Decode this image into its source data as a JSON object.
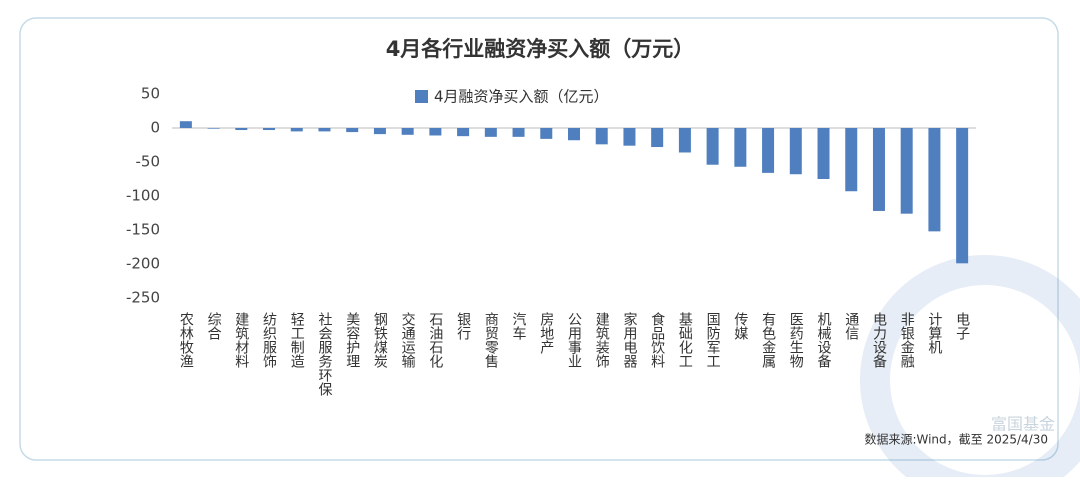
{
  "chart_data": {
    "type": "bar",
    "title": "4月各行业融资净买入额（万元）",
    "legend_label": "4月融资净买入额（亿元）",
    "source": "数据来源:Wind，截至 2025/4/30",
    "watermark": "富国基金",
    "categories": [
      "农林牧渔",
      "综合",
      "建筑材料",
      "纺织服饰",
      "轻工制造",
      "社会服务环保",
      "美容护理",
      "钢铁煤炭",
      "交通运输",
      "石油石化",
      "银行",
      "商贸零售",
      "汽车",
      "房地产",
      "公用事业",
      "建筑装饰",
      "家用电器",
      "食品饮料",
      "基础化工",
      "国防军工",
      "传媒",
      "有色金属",
      "医药生物",
      "机械设备",
      "通信",
      "电力设备",
      "非银金融",
      "计算机",
      "电子"
    ],
    "values": [
      10,
      -1,
      -3,
      -3,
      -5,
      -5,
      -6,
      -9,
      -10,
      -11,
      -12,
      -13,
      -13,
      -16,
      -18,
      -24,
      -26,
      -28,
      -36,
      -54,
      -57,
      -66,
      -68,
      -75,
      -93,
      -122,
      -126,
      -152,
      -199
    ],
    "color": "#4f7fbf",
    "ylim": [
      -250,
      50
    ],
    "yticks": [
      50,
      0,
      -50,
      -100,
      -150,
      -200,
      -250
    ],
    "grid": false
  }
}
